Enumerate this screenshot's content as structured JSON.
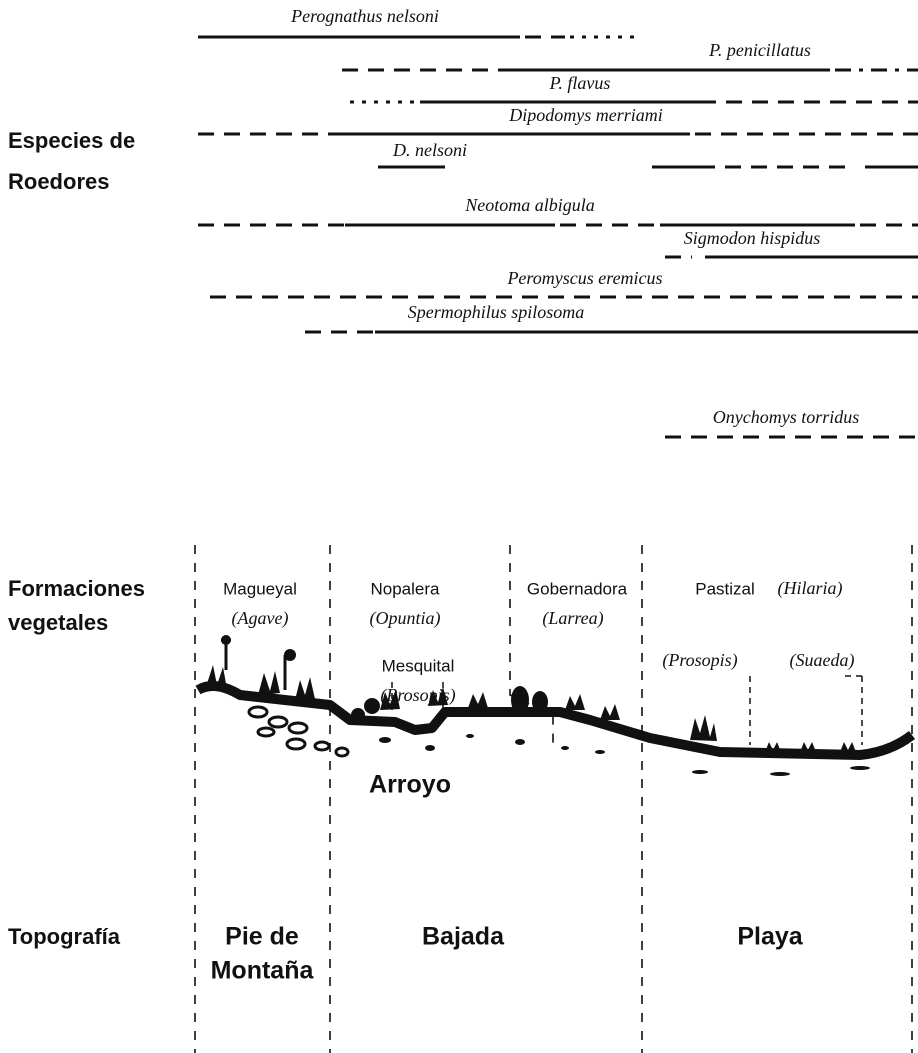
{
  "species_label": [
    "Especies de",
    "Roedores"
  ],
  "species": [
    "Perognathus nelsoni",
    "P. penicillatus",
    "P. flavus",
    "Dipodomys merriami",
    "D. nelsoni",
    "Neotoma albigula",
    "Sigmodon hispidus",
    "Peromyscus eremicus",
    "Spermophilus spilosoma",
    "Onychomys torridus"
  ],
  "vegetation": {
    "label": [
      "Formaciones",
      "vegetales"
    ],
    "formations": [
      {
        "name": "Magueyal",
        "genus": "(Agave)"
      },
      {
        "name": "Nopalera",
        "genus": "(Opuntia)"
      },
      {
        "name": "Mesquital",
        "genus": "(Prosopis)"
      },
      {
        "name": "Gobernadora",
        "genus": "(Larrea)"
      },
      {
        "name": "Pastizal",
        "genus": "(Hilaria)"
      }
    ],
    "callouts": [
      "(Prosopis)",
      "(Suaeda)"
    ]
  },
  "arroyo": "Arroyo",
  "topography": {
    "label": "Topografía",
    "zones": [
      [
        "Pie de",
        "Montaña"
      ],
      [
        "Bajada"
      ],
      [
        "Playa"
      ]
    ]
  }
}
